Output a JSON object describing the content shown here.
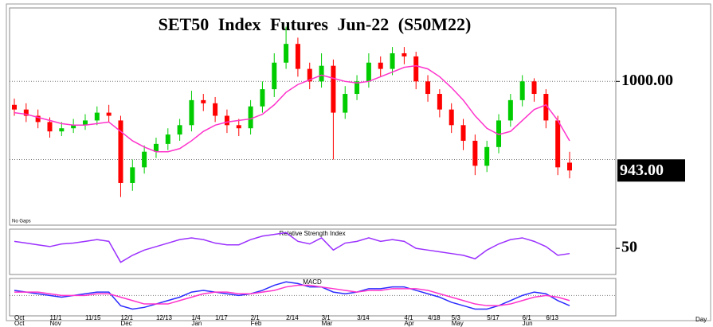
{
  "chart_data": [
    {
      "type": "candlestick",
      "title": "SET50 Index Futures Jun-22 (S50M22)",
      "annotation": "No Gaps",
      "x_label": "Day",
      "categories": [
        "Oct",
        null,
        null,
        "11/1",
        null,
        null,
        "11/15",
        null,
        null,
        "12/1",
        null,
        null,
        "12/13",
        null,
        null,
        "1/4",
        null,
        "1/17",
        null,
        null,
        "2/1",
        null,
        null,
        "2/14",
        null,
        null,
        "3/1",
        null,
        null,
        "3/14",
        null,
        null,
        null,
        "4/1",
        null,
        "4/18",
        null,
        "5/3",
        null,
        null,
        "5/17",
        null,
        null,
        "6/1",
        null,
        "6/13",
        null,
        null
      ],
      "months": [
        "Oct",
        null,
        null,
        "Nov",
        null,
        null,
        null,
        null,
        null,
        "Dec",
        null,
        null,
        null,
        null,
        null,
        "Jan",
        null,
        null,
        null,
        null,
        "Feb",
        null,
        null,
        null,
        null,
        null,
        "Mar",
        null,
        null,
        null,
        null,
        null,
        null,
        "Apr",
        null,
        null,
        null,
        "May",
        null,
        null,
        null,
        null,
        null,
        "Jun",
        null,
        null,
        null,
        null
      ],
      "open": [
        985,
        982,
        978,
        974,
        968,
        970,
        972,
        975,
        980,
        975,
        935,
        945,
        955,
        960,
        966,
        972,
        988,
        986,
        978,
        972,
        970,
        984,
        995,
        1012,
        1024,
        1008,
        1000,
        1010,
        980,
        992,
        1000,
        1012,
        1008,
        1018,
        1016,
        1000,
        992,
        982,
        972,
        962,
        946,
        958,
        975,
        988,
        1000,
        992,
        975,
        948
      ],
      "high": [
        989,
        986,
        982,
        977,
        974,
        976,
        979,
        984,
        985,
        978,
        950,
        959,
        964,
        970,
        976,
        994,
        992,
        990,
        982,
        976,
        988,
        1000,
        1018,
        1035,
        1028,
        1012,
        1018,
        1014,
        997,
        1004,
        1018,
        1016,
        1022,
        1022,
        1019,
        1004,
        995,
        986,
        976,
        966,
        962,
        979,
        992,
        1004,
        1002,
        995,
        978,
        955
      ],
      "low": [
        978,
        974,
        970,
        964,
        965,
        967,
        969,
        972,
        974,
        926,
        930,
        941,
        951,
        956,
        962,
        968,
        981,
        974,
        967,
        965,
        966,
        980,
        990,
        1008,
        1003,
        995,
        996,
        950,
        976,
        988,
        996,
        1003,
        1004,
        1011,
        995,
        987,
        977,
        967,
        956,
        940,
        942,
        954,
        971,
        984,
        987,
        970,
        940,
        938
      ],
      "close": [
        982,
        978,
        974,
        968,
        970,
        972,
        975,
        980,
        978,
        935,
        945,
        955,
        960,
        966,
        972,
        988,
        986,
        978,
        972,
        970,
        984,
        995,
        1012,
        1024,
        1008,
        1000,
        1010,
        980,
        992,
        1000,
        1012,
        1008,
        1018,
        1016,
        1000,
        992,
        982,
        972,
        962,
        946,
        958,
        975,
        988,
        1000,
        992,
        975,
        945,
        943
      ],
      "up_color": "#00cc00",
      "down_color": "#ff0000",
      "moving_average": {
        "color": "#ff33cc",
        "values": [
          980,
          979,
          977,
          975,
          973,
          972,
          972,
          973,
          974,
          968,
          962,
          958,
          955,
          955,
          957,
          962,
          968,
          972,
          974,
          975,
          976,
          979,
          985,
          993,
          998,
          1001,
          1004,
          1002,
          1000,
          999,
          1000,
          1003,
          1006,
          1009,
          1010,
          1008,
          1003,
          996,
          988,
          978,
          970,
          966,
          968,
          975,
          982,
          985,
          975,
          962
        ]
      },
      "ylim": [
        908,
        1047
      ],
      "yticks": [
        {
          "value": 1000,
          "label": "1000.00"
        }
      ],
      "gridlines": [
        950,
        1000
      ],
      "last_price": {
        "value": 943,
        "label": "943.00"
      }
    },
    {
      "type": "line",
      "title": "Relative Strength Index",
      "color": "#9b30ff",
      "values": [
        58,
        56,
        54,
        52,
        55,
        56,
        58,
        60,
        58,
        34,
        42,
        48,
        52,
        56,
        60,
        62,
        60,
        56,
        54,
        54,
        60,
        64,
        66,
        68,
        58,
        55,
        62,
        48,
        56,
        58,
        62,
        58,
        60,
        58,
        50,
        48,
        46,
        44,
        42,
        38,
        48,
        55,
        60,
        62,
        58,
        52,
        42,
        44
      ],
      "ylim": [
        20,
        72
      ],
      "yticks": [
        50
      ]
    },
    {
      "type": "line",
      "title": "MACD",
      "series": [
        {
          "color": "#2b2bff",
          "values": [
            3,
            2,
            1,
            0,
            -1,
            0,
            1,
            2,
            2,
            -6,
            -8,
            -7,
            -5,
            -3,
            -1,
            2,
            3,
            2,
            1,
            0,
            1,
            3,
            6,
            8,
            7,
            5,
            5,
            2,
            1,
            2,
            4,
            4,
            5,
            5,
            3,
            1,
            -1,
            -4,
            -6,
            -8,
            -8,
            -6,
            -3,
            0,
            2,
            1,
            -3,
            -6
          ]
        },
        {
          "color": "#ff33cc",
          "values": [
            2,
            2,
            2,
            1,
            0,
            0,
            0,
            1,
            1,
            -1,
            -3,
            -5,
            -5,
            -5,
            -3,
            -1,
            1,
            2,
            2,
            1,
            1,
            2,
            3,
            5,
            6,
            6,
            5,
            4,
            3,
            2,
            3,
            3,
            4,
            4,
            4,
            3,
            1,
            -1,
            -3,
            -5,
            -6,
            -6,
            -5,
            -3,
            -1,
            0,
            -1,
            -3
          ]
        }
      ],
      "ylim": [
        -12,
        10
      ],
      "gridlines": [
        0
      ]
    }
  ]
}
